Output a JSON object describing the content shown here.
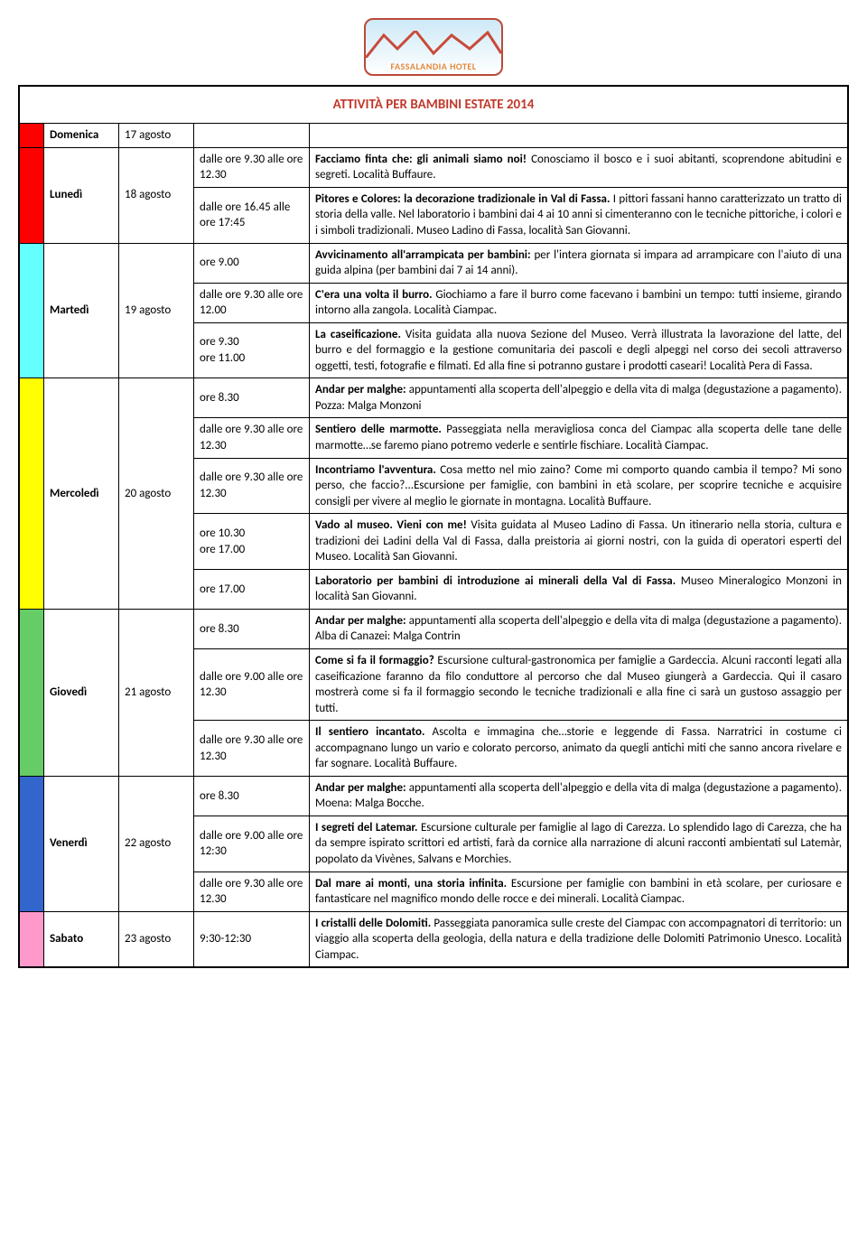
{
  "logo_text": "FASSALANDIA HOTEL",
  "title": "ATTIVITÀ PER BAMBINI ESTATE 2014",
  "title_color": "#c0392b",
  "colors": {
    "domenica": "#ff0000",
    "lunedi": "#ff0000",
    "martedi": "#66ffff",
    "mercoledi": "#ffff00",
    "giovedi": "#66cc66",
    "venerdi": "#3366cc",
    "sabato": "#ff99cc"
  },
  "days": [
    {
      "key": "domenica",
      "name": "Domenica",
      "date": "17 agosto",
      "rows": []
    },
    {
      "key": "lunedi",
      "name": "Lunedì",
      "date": "18 agosto",
      "rows": [
        {
          "time": "dalle ore 9.30 alle ore 12.30",
          "bold": "Facciamo finta che: gli animali siamo noi! ",
          "text": "Conosciamo il bosco e i suoi abitanti, scoprendone abitudini e segreti. Località Buffaure."
        },
        {
          "time": "dalle ore 16.45 alle ore 17:45",
          "bold": "Pitores e Colores: la decorazione tradizionale in Val di Fassa. ",
          "text": "I pittori fassani hanno caratterizzato un tratto di storia della valle. Nel laboratorio i bambini dai 4 ai 10 anni si cimenteranno con le tecniche pittoriche, i colori e i simboli tradizionali. Museo Ladino di Fassa, località San Giovanni."
        }
      ]
    },
    {
      "key": "martedi",
      "name": "Martedì",
      "date": "19 agosto",
      "rows": [
        {
          "time": "ore 9.00",
          "bold": "Avvicinamento all'arrampicata per bambini: ",
          "text": "per l'intera giornata si impara ad arrampicare con l'aiuto di una guida alpina (per bambini dai 7 ai 14 anni)."
        },
        {
          "time": "dalle ore 9.30 alle ore 12.00",
          "bold": "C'era una volta il burro. ",
          "text": "Giochiamo a fare il burro come facevano i bambini un tempo: tutti insieme, girando intorno alla zangola. Località Ciampac."
        },
        {
          "time": "ore 9.30\nore 11.00",
          "bold": "La caseificazione. ",
          "text": "Visita guidata alla nuova Sezione del Museo. Verrà illustrata la lavorazione del latte, del burro e del formaggio e la gestione comunitaria dei pascoli e degli alpeggi nel corso dei secoli attraverso oggetti, testi, fotografie e filmati. Ed alla fine si potranno gustare i prodotti caseari!  Località Pera di Fassa."
        }
      ]
    },
    {
      "key": "mercoledi",
      "name": "Mercoledì",
      "date": "20 agosto",
      "rows": [
        {
          "time": "ore 8.30",
          "bold": "Andar per malghe: ",
          "text": "appuntamenti alla scoperta dell'alpeggio e della vita di malga (degustazione a pagamento). Pozza: Malga Monzoni"
        },
        {
          "time": "dalle ore 9.30 alle ore 12.30",
          "bold": "Sentiero delle marmotte. ",
          "text": "Passeggiata nella meravigliosa conca del Ciampac alla scoperta delle tane delle marmotte…se faremo piano potremo vederle e sentirle fischiare. Località Ciampac."
        },
        {
          "time": "dalle ore 9.30 alle ore 12.30",
          "bold": "Incontriamo l'avventura. ",
          "text": "Cosa metto nel mio zaino? Come mi comporto quando cambia il tempo? Mi sono perso, che faccio?...Escursione per famiglie, con bambini in età scolare, per scoprire tecniche e acquisire consigli per vivere al meglio le giornate in montagna. Località Buffaure."
        },
        {
          "time": "ore 10.30\nore 17.00",
          "bold": "Vado al museo. Vieni con me! ",
          "text": "Visita guidata al Museo Ladino di Fassa. Un itinerario nella storia, cultura e tradizioni dei Ladini della Val di Fassa, dalla preistoria ai giorni nostri, con la guida di operatori esperti del Museo. Località San Giovanni."
        },
        {
          "time": "ore 17.00",
          "bold": "Laboratorio per bambini di introduzione ai minerali della Val di Fassa. ",
          "text": "Museo Mineralogico Monzoni in località San Giovanni."
        }
      ]
    },
    {
      "key": "giovedi",
      "name": "Giovedì",
      "date": "21 agosto",
      "rows": [
        {
          "time": "ore 8.30",
          "bold": "Andar per malghe: ",
          "text": "appuntamenti alla scoperta dell'alpeggio e della vita di malga (degustazione a pagamento). Alba di Canazei: Malga Contrin"
        },
        {
          "time": "dalle ore 9.00 alle ore 12.30",
          "bold": "Come si fa il formaggio? ",
          "text": "Escursione cultural-gastronomica per famiglie a Gardeccia. Alcuni racconti legati alla caseificazione faranno da filo conduttore al percorso che dal Museo giungerà a Gardeccia. Qui il casaro mostrerà come si fa il formaggio secondo le tecniche tradizionali e alla fine ci sarà un gustoso assaggio per tutti."
        },
        {
          "time": "dalle ore 9.30 alle ore 12.30",
          "bold": "Il sentiero incantato. ",
          "text": "Ascolta e immagina che…storie e leggende di Fassa. Narratrici in costume ci accompagnano lungo un vario e colorato percorso, animato da quegli antichi miti che sanno ancora rivelare e far sognare. Località Buffaure."
        }
      ]
    },
    {
      "key": "venerdi",
      "name": "Venerdì",
      "date": "22 agosto",
      "rows": [
        {
          "time": "ore 8.30",
          "bold": "Andar per malghe: ",
          "text": "appuntamenti alla scoperta dell'alpeggio e della vita di malga (degustazione a pagamento). Moena: Malga Bocche."
        },
        {
          "time": "dalle ore 9.00 alle ore 12:30",
          "bold": "I segreti del Latemar. ",
          "text": "Escursione culturale per famiglie al lago di Carezza. Lo splendido lago di Carezza, che ha da sempre ispirato scrittori ed artisti, farà da cornice alla narrazione di alcuni racconti ambientati sul Latemàr, popolato da Vivènes, Salvans e Morchies."
        },
        {
          "time": "dalle ore 9.30 alle ore 12.30",
          "bold": "Dal mare ai monti, una storia infinita. ",
          "text": "Escursione per famiglie con bambini in età scolare, per curiosare e fantasticare nel magnifico mondo delle rocce e dei minerali. Località Ciampac."
        }
      ]
    },
    {
      "key": "sabato",
      "name": "Sabato",
      "date": "23 agosto",
      "rows": [
        {
          "time": "9:30-12:30",
          "bold": "I cristalli delle Dolomiti. ",
          "text": "Passeggiata panoramica sulle creste del Ciampac con accompagnatori di territorio: un viaggio alla scoperta della geologia, della natura e della tradizione delle Dolomiti Patrimonio Unesco. Località Ciampac."
        }
      ]
    }
  ]
}
